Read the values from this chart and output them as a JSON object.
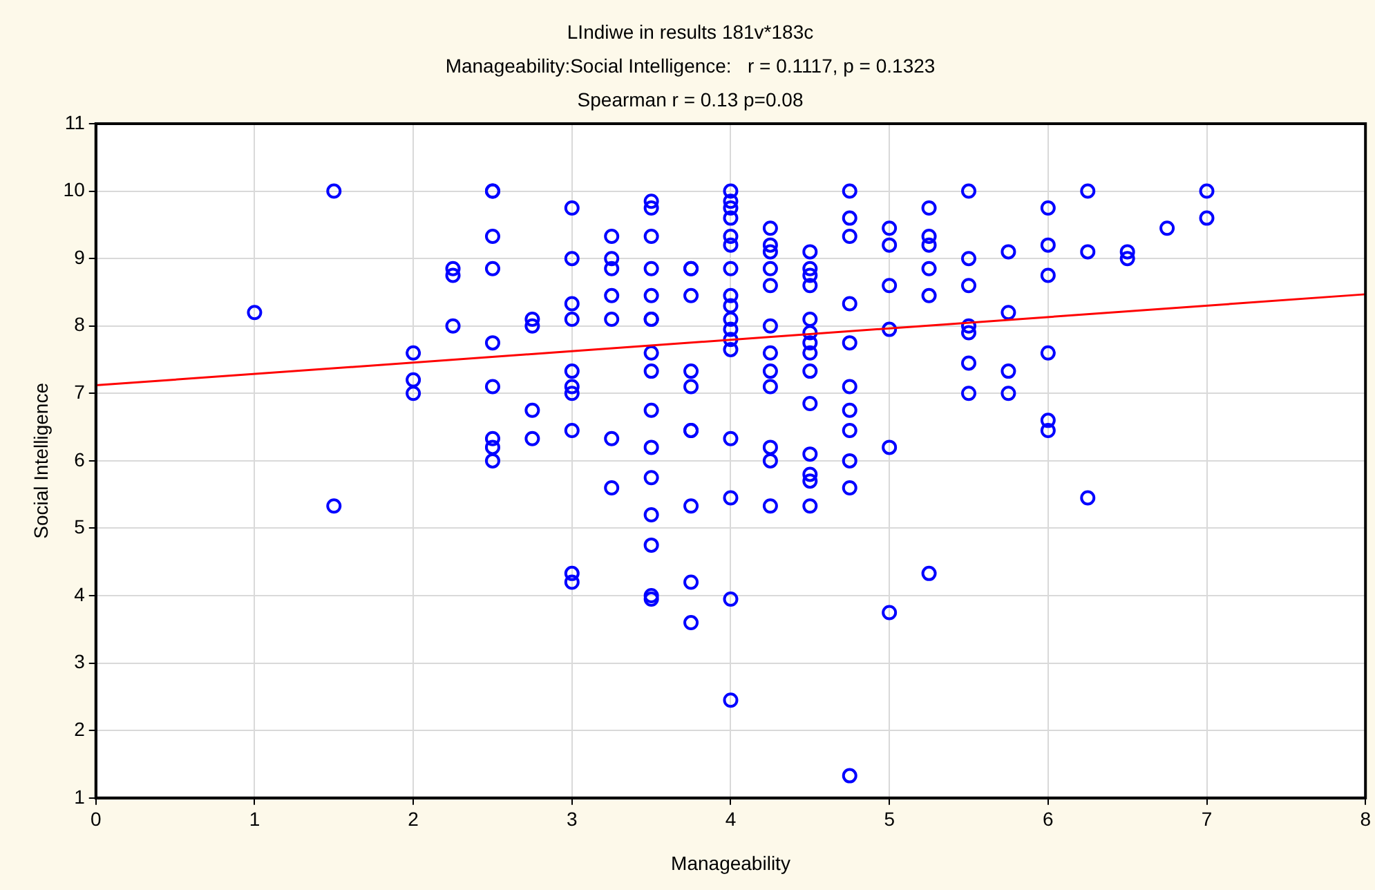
{
  "chart_data": {
    "type": "scatter",
    "title": "LIndiwe in results 181v*183c",
    "subtitle": "Manageability:Social Intelligence:   r = 0.1117, p = 0.1323",
    "annotations": [
      "Spearman r = 0.13 p=0.08"
    ],
    "xlabel": "Manageability",
    "ylabel": "Social Intelligence",
    "xlim": [
      0,
      8
    ],
    "xticks": [
      0,
      1,
      2,
      3,
      4,
      5,
      6,
      7,
      8
    ],
    "ylim": [
      1,
      11
    ],
    "yticks": [
      1,
      2,
      3,
      4,
      5,
      6,
      7,
      8,
      9,
      10,
      11
    ],
    "grid": true,
    "marker": "circle",
    "series": [
      {
        "color": "#0000ff",
        "x": [
          1,
          1.5,
          1.5,
          2,
          2,
          2,
          2.25,
          2.25,
          2.25,
          2.5,
          2.5,
          2.5,
          2.5,
          2.5,
          2.5,
          2.5,
          2.5,
          2.5,
          2.75,
          2.75,
          2.75,
          2.75,
          3,
          3,
          3,
          3,
          3,
          3,
          3,
          3,
          3,
          3,
          3.25,
          3.25,
          3.25,
          3.25,
          3.25,
          3.25,
          3.25,
          3.5,
          3.5,
          3.5,
          3.5,
          3.5,
          3.5,
          3.5,
          3.5,
          3.5,
          3.5,
          3.5,
          3.5,
          3.5,
          3.5,
          3.5,
          3.5,
          3.75,
          3.75,
          3.75,
          3.75,
          3.75,
          3.75,
          3.75,
          3.75,
          3.75,
          3.75,
          4,
          4,
          4,
          4,
          4,
          4,
          4,
          4,
          4,
          4,
          4,
          4,
          4,
          4,
          4,
          4,
          4,
          4.25,
          4.25,
          4.25,
          4.25,
          4.25,
          4.25,
          4.25,
          4.25,
          4.25,
          4.25,
          4.25,
          4.25,
          4.5,
          4.5,
          4.5,
          4.5,
          4.5,
          4.5,
          4.5,
          4.5,
          4.5,
          4.5,
          4.5,
          4.5,
          4.5,
          4.5,
          4.75,
          4.75,
          4.75,
          4.75,
          4.75,
          4.75,
          4.75,
          4.75,
          4.75,
          4.75,
          4.75,
          5,
          5,
          5,
          5,
          5,
          5,
          5.25,
          5.25,
          5.25,
          5.25,
          5.25,
          5.25,
          5.5,
          5.5,
          5.5,
          5.5,
          5.5,
          5.5,
          5.5,
          5.75,
          5.75,
          5.75,
          5.75,
          6,
          6,
          6,
          6,
          6,
          6,
          6.25,
          6.25,
          6.25,
          6.5,
          6.5,
          6.75,
          7,
          7
        ],
        "values": [
          8.2,
          10,
          5.33,
          7.6,
          7.2,
          7,
          8.85,
          8.75,
          8,
          10,
          10,
          9.33,
          8.85,
          7.75,
          7.1,
          6.33,
          6.2,
          6,
          8.1,
          8,
          6.75,
          6.33,
          9.75,
          9,
          8.33,
          8.1,
          7.33,
          7.1,
          7,
          6.45,
          4.33,
          4.2,
          9.33,
          9,
          8.85,
          8.45,
          8.1,
          6.33,
          5.6,
          9.85,
          9.75,
          9.33,
          8.85,
          8.45,
          8.1,
          8.1,
          7.6,
          7.33,
          6.75,
          6.2,
          5.75,
          5.2,
          4.75,
          4,
          3.95,
          8.85,
          8.85,
          8.45,
          7.33,
          7.1,
          6.45,
          6.45,
          5.33,
          4.2,
          3.6,
          10,
          9.85,
          9.75,
          9.6,
          9.33,
          9.2,
          8.85,
          8.45,
          8.3,
          8.1,
          7.95,
          7.8,
          7.65,
          6.33,
          5.45,
          3.95,
          2.45,
          9.45,
          9.2,
          9.1,
          8.85,
          8.6,
          8,
          7.6,
          7.33,
          7.1,
          6.2,
          6,
          5.33,
          9.1,
          8.85,
          8.75,
          8.6,
          8.1,
          7.9,
          7.75,
          7.6,
          7.33,
          6.85,
          6.1,
          5.8,
          5.7,
          5.33,
          10,
          9.6,
          9.33,
          8.33,
          7.75,
          7.1,
          6.75,
          6.45,
          6,
          5.6,
          1.33,
          9.45,
          9.2,
          8.6,
          7.95,
          6.2,
          3.75,
          9.75,
          9.33,
          9.2,
          8.85,
          8.45,
          4.33,
          10,
          9,
          8.6,
          8,
          7.9,
          7.45,
          7,
          9.1,
          8.2,
          7.33,
          7,
          9.75,
          9.2,
          8.75,
          7.6,
          6.6,
          6.45,
          10,
          9.1,
          5.45,
          9.1,
          9,
          9.45,
          10,
          9.6
        ]
      },
      {
        "type": "line",
        "color": "#ff0000",
        "marker": "none",
        "x": [
          0,
          8
        ],
        "values": [
          7.12,
          8.47
        ]
      }
    ]
  }
}
